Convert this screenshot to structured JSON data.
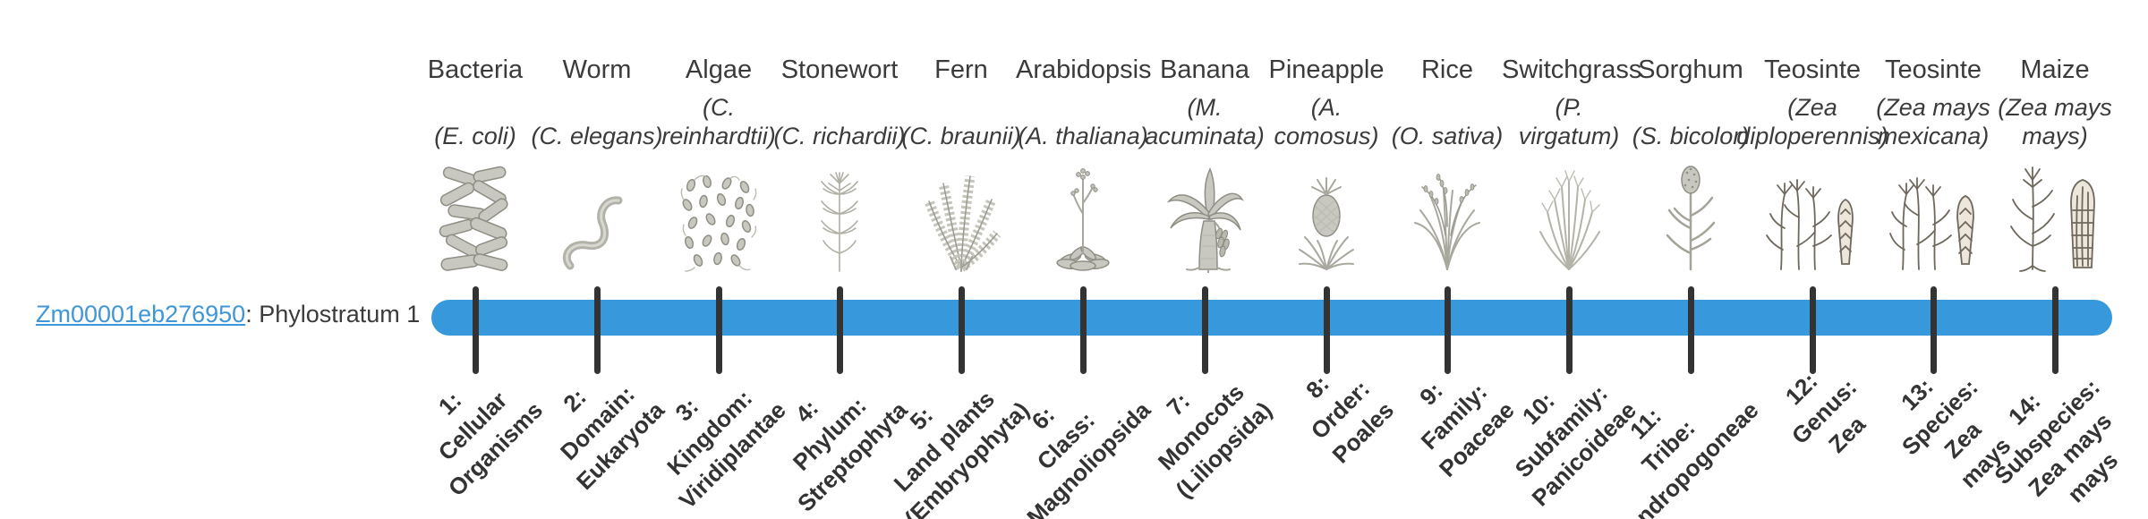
{
  "gene": {
    "id": "Zm00001eb276950",
    "phylostratum_text": ": Phylostratum 1"
  },
  "colors": {
    "bar_blue": "#3798db",
    "tick_dark": "#333333",
    "link_blue": "#3f96d8",
    "text_gray": "#3b3b3b"
  },
  "organisms": [
    {
      "name": "Bacteria",
      "sci_lines": [
        "(E. coli)"
      ],
      "icon": "bacteria-icon",
      "stratum_lines": [
        "1:",
        "Cellular",
        "Organisms"
      ]
    },
    {
      "name": "Worm",
      "sci_lines": [
        "(C. elegans)"
      ],
      "icon": "worm-icon",
      "stratum_lines": [
        "2:",
        "Domain:",
        "Eukaryota"
      ]
    },
    {
      "name": "Algae",
      "sci_lines": [
        "(C.",
        "reinhardtii)"
      ],
      "icon": "algae-icon",
      "stratum_lines": [
        "3:",
        "Kingdom:",
        "Viridiplantae"
      ]
    },
    {
      "name": "Stonewort",
      "sci_lines": [
        "(C. richardii)"
      ],
      "icon": "stonewort-icon",
      "stratum_lines": [
        "4:",
        "Phylum:",
        "Streptophyta"
      ]
    },
    {
      "name": "Fern",
      "sci_lines": [
        "(C. braunii)"
      ],
      "icon": "fern-icon",
      "stratum_lines": [
        "5:",
        "Land plants",
        "(Embryophyta)"
      ]
    },
    {
      "name": "Arabidopsis",
      "sci_lines": [
        "(A. thaliana)"
      ],
      "icon": "arabidopsis-icon",
      "stratum_lines": [
        "6:",
        "Class:",
        "Magnoliopsida"
      ]
    },
    {
      "name": "Banana",
      "sci_lines": [
        "(M.",
        "acuminata)"
      ],
      "icon": "banana-icon",
      "stratum_lines": [
        "7:",
        "Monocots",
        "(Liliopsida)"
      ]
    },
    {
      "name": "Pineapple",
      "sci_lines": [
        "(A.",
        "comosus)"
      ],
      "icon": "pineapple-icon",
      "stratum_lines": [
        "8:",
        "Order:",
        "Poales"
      ]
    },
    {
      "name": "Rice",
      "sci_lines": [
        "(O. sativa)"
      ],
      "icon": "rice-icon",
      "stratum_lines": [
        "9:",
        "Family:",
        "Poaceae"
      ]
    },
    {
      "name": "Switchgrass",
      "sci_lines": [
        "(P.",
        "virgatum)"
      ],
      "icon": "switchgrass-icon",
      "stratum_lines": [
        "10:",
        "Subfamily:",
        "Panicoideae"
      ]
    },
    {
      "name": "Sorghum",
      "sci_lines": [
        "(S. bicolor)"
      ],
      "icon": "sorghum-icon",
      "stratum_lines": [
        "11:",
        "Tribe:",
        "Andropogoneae"
      ]
    },
    {
      "name": "Teosinte",
      "sci_lines": [
        "(Zea",
        "diploperennis)"
      ],
      "icon": "teosinte-diploperennis-icon",
      "stratum_lines": [
        "12:",
        "Genus:",
        "Zea"
      ]
    },
    {
      "name": "Teosinte",
      "sci_lines": [
        "(Zea mays",
        "mexicana)"
      ],
      "icon": "teosinte-mexicana-icon",
      "stratum_lines": [
        "13:",
        "Species:",
        "Zea",
        "mays"
      ]
    },
    {
      "name": "Maize",
      "sci_lines": [
        "(Zea mays",
        "mays)"
      ],
      "icon": "maize-icon",
      "stratum_lines": [
        "14:",
        "Subspecies:",
        "Zea mays",
        "mays"
      ]
    }
  ]
}
